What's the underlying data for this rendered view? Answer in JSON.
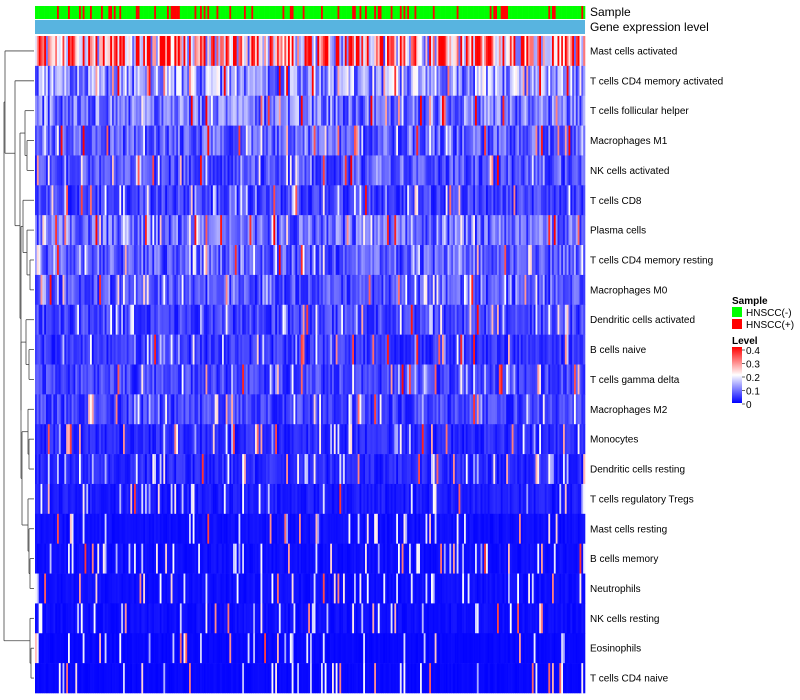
{
  "chart_data": {
    "type": "heatmap",
    "title": "",
    "annotation_tracks": [
      "Sample",
      "Gene expression level"
    ],
    "rows": [
      "Mast cells activated",
      "T cells CD4 memory activated",
      "T cells follicular helper",
      "Macrophages M1",
      "NK cells activated",
      "T cells CD8",
      "Plasma cells",
      "T cells CD4 memory resting",
      "Macrophages M0",
      "Dendritic cells activated",
      "B cells naive",
      "T cells gamma delta",
      "Macrophages M2",
      "Monocytes",
      "Dendritic cells resting",
      "T cells regulatory  Tregs",
      "Mast cells resting",
      "B cells memory",
      "Neutrophils",
      "NK cells resting",
      "Eosinophils",
      "T cells CD4 naive"
    ],
    "row_mean_level": [
      0.25,
      0.12,
      0.09,
      0.07,
      0.06,
      0.05,
      0.08,
      0.07,
      0.06,
      0.05,
      0.04,
      0.05,
      0.05,
      0.03,
      0.03,
      0.02,
      0.01,
      0.01,
      0.01,
      0.01,
      0.005,
      0.005
    ],
    "n_samples": 300,
    "hnscc_pos_fraction": 0.22,
    "sample_legend": {
      "title": "Sample",
      "items": [
        {
          "label": "HNSCC(-)",
          "color": "#00ff00"
        },
        {
          "label": "HNSCC(+)",
          "color": "#ff0000"
        }
      ]
    },
    "level_legend": {
      "title": "Level",
      "ticks": [
        "0.4",
        "0.3",
        "0.2",
        "0.1",
        "0"
      ],
      "range": [
        0,
        0.4
      ],
      "colors": [
        "#0000ff",
        "#ffffff",
        "#ff0000"
      ]
    },
    "gene_expression_track_color": "#58b4e0"
  }
}
